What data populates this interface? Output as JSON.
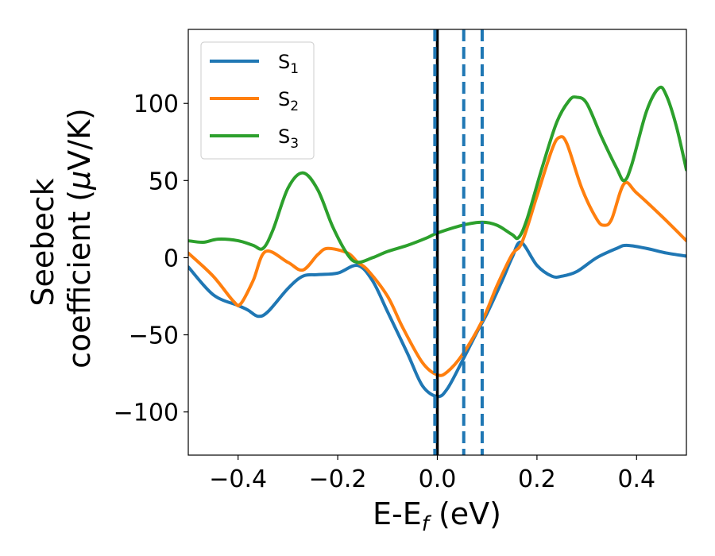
{
  "chart_data": {
    "type": "line",
    "title": "",
    "xlabel": "E-E",
    "xlabel_sub": "f",
    "xlabel_units": " (eV)",
    "ylabel_line1": "Seebeck",
    "ylabel_line2": "coefficient  (",
    "ylabel_mu": "μ",
    "ylabel_units": "V/K)",
    "xlim": [
      -0.5,
      0.5
    ],
    "ylim": [
      -128,
      148
    ],
    "xticks": [
      -0.4,
      -0.2,
      0.0,
      0.2,
      0.4
    ],
    "xtick_labels": [
      "−0.4",
      "−0.2",
      "0.0",
      "0.2",
      "0.4"
    ],
    "yticks": [
      -100,
      -50,
      0,
      50,
      100
    ],
    "ytick_labels": [
      "−100",
      "−50",
      "0",
      "50",
      "100"
    ],
    "grid": false,
    "legend_position": "top-left",
    "vlines": [
      {
        "x": 0.0,
        "style": "solid",
        "color": "#000000"
      },
      {
        "x": -0.005,
        "style": "dashed",
        "color": "#1f77b4"
      },
      {
        "x": 0.053,
        "style": "dashed",
        "color": "#1f77b4"
      },
      {
        "x": 0.09,
        "style": "dashed",
        "color": "#1f77b4"
      }
    ],
    "series": [
      {
        "name": "S",
        "sub": "1",
        "color": "#1f77b4",
        "points": [
          [
            -0.5,
            -6
          ],
          [
            -0.45,
            -24
          ],
          [
            -0.4,
            -31
          ],
          [
            -0.38,
            -34
          ],
          [
            -0.36,
            -38
          ],
          [
            -0.34,
            -35
          ],
          [
            -0.3,
            -20
          ],
          [
            -0.27,
            -12
          ],
          [
            -0.24,
            -11
          ],
          [
            -0.2,
            -10
          ],
          [
            -0.16,
            -5
          ],
          [
            -0.13,
            -15
          ],
          [
            -0.1,
            -35
          ],
          [
            -0.06,
            -62
          ],
          [
            -0.03,
            -83
          ],
          [
            0.0,
            -90
          ],
          [
            0.02,
            -85
          ],
          [
            0.05,
            -67
          ],
          [
            0.08,
            -48
          ],
          [
            0.1,
            -36
          ],
          [
            0.13,
            -15
          ],
          [
            0.15,
            0
          ],
          [
            0.168,
            10
          ],
          [
            0.2,
            -5
          ],
          [
            0.23,
            -12
          ],
          [
            0.25,
            -12
          ],
          [
            0.28,
            -9
          ],
          [
            0.32,
            0
          ],
          [
            0.36,
            6
          ],
          [
            0.38,
            8
          ],
          [
            0.42,
            6
          ],
          [
            0.46,
            3
          ],
          [
            0.5,
            1
          ]
        ]
      },
      {
        "name": "S",
        "sub": "2",
        "color": "#ff7f0e",
        "points": [
          [
            -0.5,
            3
          ],
          [
            -0.45,
            -12
          ],
          [
            -0.41,
            -28
          ],
          [
            -0.395,
            -30
          ],
          [
            -0.37,
            -15
          ],
          [
            -0.345,
            4
          ],
          [
            -0.3,
            -3
          ],
          [
            -0.27,
            -8
          ],
          [
            -0.24,
            2
          ],
          [
            -0.22,
            6
          ],
          [
            -0.18,
            3
          ],
          [
            -0.16,
            -3
          ],
          [
            -0.14,
            -8
          ],
          [
            -0.1,
            -25
          ],
          [
            -0.07,
            -45
          ],
          [
            -0.03,
            -68
          ],
          [
            0.0,
            -76
          ],
          [
            0.02,
            -74
          ],
          [
            0.05,
            -63
          ],
          [
            0.09,
            -41
          ],
          [
            0.12,
            -18
          ],
          [
            0.15,
            2
          ],
          [
            0.17,
            10
          ],
          [
            0.2,
            40
          ],
          [
            0.23,
            70
          ],
          [
            0.245,
            78
          ],
          [
            0.26,
            74
          ],
          [
            0.29,
            45
          ],
          [
            0.32,
            25
          ],
          [
            0.335,
            21
          ],
          [
            0.35,
            25
          ],
          [
            0.375,
            48
          ],
          [
            0.4,
            42
          ],
          [
            0.45,
            27
          ],
          [
            0.5,
            11
          ]
        ]
      },
      {
        "name": "S",
        "sub": "3",
        "color": "#2ca02c",
        "points": [
          [
            -0.5,
            11
          ],
          [
            -0.47,
            10
          ],
          [
            -0.44,
            12
          ],
          [
            -0.4,
            11
          ],
          [
            -0.37,
            8
          ],
          [
            -0.35,
            6
          ],
          [
            -0.33,
            18
          ],
          [
            -0.3,
            45
          ],
          [
            -0.27,
            55
          ],
          [
            -0.24,
            44
          ],
          [
            -0.21,
            20
          ],
          [
            -0.18,
            2
          ],
          [
            -0.16,
            -3
          ],
          [
            -0.13,
            0
          ],
          [
            -0.1,
            4
          ],
          [
            -0.06,
            8
          ],
          [
            -0.02,
            13
          ],
          [
            0.0,
            16
          ],
          [
            0.05,
            21
          ],
          [
            0.09,
            23
          ],
          [
            0.12,
            21
          ],
          [
            0.15,
            15
          ],
          [
            0.163,
            13
          ],
          [
            0.18,
            25
          ],
          [
            0.21,
            58
          ],
          [
            0.24,
            88
          ],
          [
            0.265,
            102
          ],
          [
            0.28,
            104
          ],
          [
            0.3,
            100
          ],
          [
            0.33,
            78
          ],
          [
            0.36,
            58
          ],
          [
            0.375,
            50
          ],
          [
            0.39,
            60
          ],
          [
            0.42,
            95
          ],
          [
            0.445,
            110
          ],
          [
            0.46,
            105
          ],
          [
            0.48,
            85
          ],
          [
            0.5,
            57
          ]
        ]
      }
    ]
  }
}
